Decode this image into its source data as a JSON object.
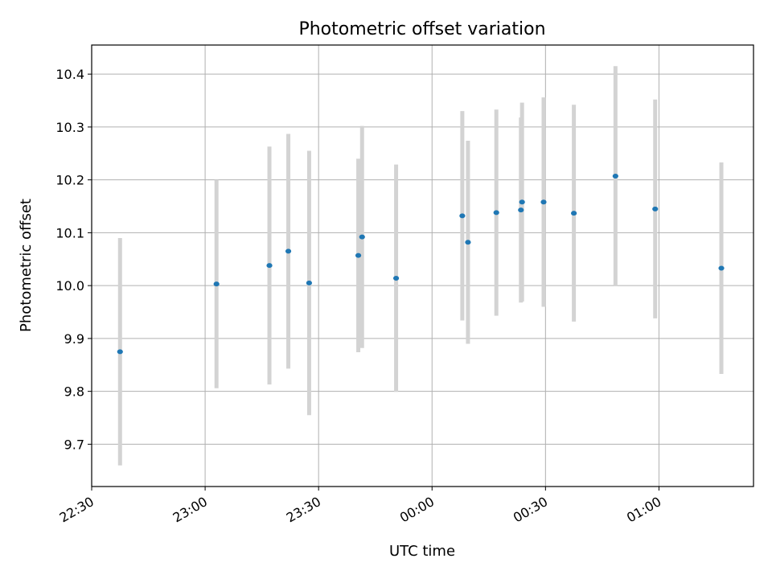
{
  "chart_data": {
    "type": "scatter",
    "title": "Photometric offset variation",
    "xlabel": "UTC time",
    "ylabel": "Photometric offset",
    "x_tick_labels": [
      "22:30",
      "23:00",
      "23:30",
      "00:00",
      "00:30",
      "01:00"
    ],
    "y_tick_labels": [
      "9.7",
      "9.8",
      "9.9",
      "10.0",
      "10.1",
      "10.2",
      "10.3",
      "10.4"
    ],
    "xlim": [
      "22:30",
      "01:25"
    ],
    "ylim": [
      9.62,
      10.455
    ],
    "grid": true,
    "colors": {
      "point": "#1f77b4",
      "errorbar": "#d3d3d3",
      "grid": "#b0b0b0"
    },
    "points": [
      {
        "x": "22:37.5",
        "y": 9.875,
        "yerr": 0.215
      },
      {
        "x": "23:03",
        "y": 10.003,
        "yerr": 0.197
      },
      {
        "x": "23:17",
        "y": 10.038,
        "yerr": 0.225
      },
      {
        "x": "23:22",
        "y": 10.065,
        "yerr": 0.222
      },
      {
        "x": "23:27.5",
        "y": 10.005,
        "yerr": 0.25
      },
      {
        "x": "23:40.5",
        "y": 10.057,
        "yerr": 0.183
      },
      {
        "x": "23:41.5",
        "y": 10.092,
        "yerr": 0.21
      },
      {
        "x": "23:50.5",
        "y": 10.014,
        "yerr": 0.215
      },
      {
        "x": "00:08",
        "y": 10.132,
        "yerr": 0.198
      },
      {
        "x": "00:09.5",
        "y": 10.082,
        "yerr": 0.192
      },
      {
        "x": "00:17",
        "y": 10.138,
        "yerr": 0.195
      },
      {
        "x": "00:23.5",
        "y": 10.143,
        "yerr": 0.175
      },
      {
        "x": "00:23.8",
        "y": 10.158,
        "yerr": 0.188
      },
      {
        "x": "00:29.5",
        "y": 10.158,
        "yerr": 0.198
      },
      {
        "x": "00:37.5",
        "y": 10.137,
        "yerr": 0.205
      },
      {
        "x": "00:48.5",
        "y": 10.207,
        "yerr": 0.208
      },
      {
        "x": "00:59",
        "y": 10.145,
        "yerr": 0.207
      },
      {
        "x": "01:16.5",
        "y": 10.033,
        "yerr": 0.2
      }
    ]
  }
}
